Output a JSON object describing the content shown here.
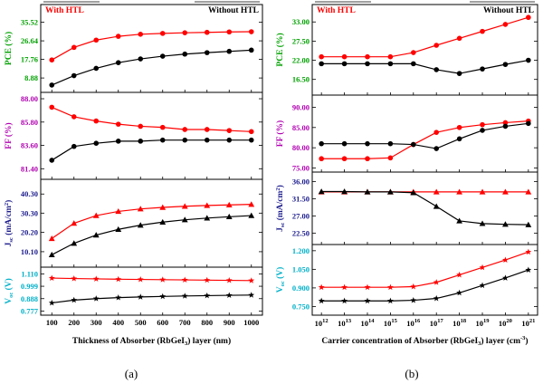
{
  "colors": {
    "with_htl": "#ff0000",
    "without_htl": "#000000",
    "pce": "#00a000",
    "ff": "#b000b0",
    "jsc": "#1a1a8c",
    "voc": "#00b0c8"
  },
  "chart_data": [
    {
      "id": "a",
      "type": "line",
      "caption": "(a)",
      "xlabel": "Thickness of Absorber (RbGeI3) layer (nm)",
      "x": [
        100,
        200,
        300,
        400,
        500,
        600,
        700,
        800,
        900,
        1000
      ],
      "xticks": [
        "100",
        "200",
        "300",
        "400",
        "500",
        "600",
        "700",
        "800",
        "900",
        "1000"
      ],
      "xlim": [
        50,
        1050
      ],
      "legend": [
        "With HTL",
        "Without HTL"
      ],
      "panels": [
        {
          "key": "pce",
          "ylabel": "PCE (%)",
          "ylim": [
            2,
            44
          ],
          "yticks": [
            "8.88",
            "17.76",
            "26.64",
            "35.52"
          ],
          "ytick_values": [
            8.88,
            17.76,
            26.64,
            35.52
          ],
          "marker": "circle",
          "series": [
            {
              "name": "With HTL",
              "values": [
                17.5,
                23.5,
                27.0,
                28.8,
                29.8,
                30.2,
                30.5,
                30.7,
                30.9,
                31.0
              ]
            },
            {
              "name": "Without HTL",
              "values": [
                5.5,
                10.0,
                13.5,
                16.2,
                18.0,
                19.3,
                20.3,
                21.0,
                21.6,
                22.2
              ]
            }
          ]
        },
        {
          "key": "ff",
          "ylabel": "FF (%)",
          "ylim": [
            80.4,
            88.6
          ],
          "yticks": [
            "81.40",
            "83.60",
            "85.80",
            "88.00"
          ],
          "ytick_values": [
            81.4,
            83.6,
            85.8,
            88.0
          ],
          "marker": "circle",
          "series": [
            {
              "name": "With HTL",
              "values": [
                87.2,
                86.3,
                85.9,
                85.6,
                85.4,
                85.3,
                85.1,
                85.1,
                85.0,
                84.9
              ]
            },
            {
              "name": "Without HTL",
              "values": [
                82.2,
                83.5,
                83.8,
                84.0,
                84.0,
                84.1,
                84.1,
                84.1,
                84.1,
                84.1
              ]
            }
          ]
        },
        {
          "key": "jsc",
          "ylabel": "Jsc (mA/cm2)",
          "ylim": [
            2,
            48
          ],
          "yticks": [
            "10.10",
            "20.20",
            "30.30",
            "40.30"
          ],
          "ytick_values": [
            10.1,
            20.2,
            30.3,
            40.3
          ],
          "marker": "triangle",
          "series": [
            {
              "name": "With HTL",
              "values": [
                17.0,
                25.0,
                29.0,
                31.2,
                32.5,
                33.3,
                33.9,
                34.3,
                34.6,
                34.9
              ]
            },
            {
              "name": "Without HTL",
              "values": [
                8.5,
                14.5,
                18.8,
                21.8,
                24.0,
                25.6,
                26.8,
                27.7,
                28.4,
                29.0
              ]
            }
          ]
        },
        {
          "key": "voc",
          "ylabel": "Voc (V)",
          "ylim": [
            0.74,
            1.17
          ],
          "yticks": [
            "0.777",
            "0.888",
            "0.999",
            "1.110"
          ],
          "ytick_values": [
            0.777,
            0.888,
            0.999,
            1.11
          ],
          "marker": "star",
          "series": [
            {
              "name": "With HTL",
              "values": [
                1.072,
                1.068,
                1.065,
                1.062,
                1.06,
                1.058,
                1.056,
                1.054,
                1.052,
                1.05
              ]
            },
            {
              "name": "Without HTL",
              "values": [
                0.85,
                0.875,
                0.888,
                0.897,
                0.903,
                0.908,
                0.912,
                0.915,
                0.918,
                0.92
              ]
            }
          ]
        }
      ]
    },
    {
      "id": "b",
      "type": "line",
      "caption": "(b)",
      "xlabel": "Carrier concentration of Absorber (RbGeI3) layer (cm-3)",
      "x": [
        12,
        13,
        14,
        15,
        16,
        17,
        18,
        19,
        20,
        21
      ],
      "xticks": [
        "10^12",
        "10^13",
        "10^14",
        "10^15",
        "10^16",
        "10^17",
        "10^18",
        "10^19",
        "10^20",
        "10^21"
      ],
      "xlim": [
        11.6,
        21.4
      ],
      "legend": [
        "With HTL",
        "Without HTL"
      ],
      "panels": [
        {
          "key": "pce",
          "ylabel": "PCE (%)",
          "ylim": [
            12,
            38
          ],
          "yticks": [
            "16.50",
            "22.00",
            "27.50",
            "33.00"
          ],
          "ytick_values": [
            16.5,
            22.0,
            27.5,
            33.0
          ],
          "marker": "circle",
          "series": [
            {
              "name": "With HTL",
              "values": [
                23.0,
                23.0,
                23.0,
                23.0,
                24.2,
                26.3,
                28.3,
                30.3,
                32.3,
                34.3
              ]
            },
            {
              "name": "Without HTL",
              "values": [
                21.0,
                21.0,
                21.0,
                21.0,
                21.0,
                19.3,
                18.2,
                19.5,
                20.8,
                22.0
              ]
            }
          ]
        },
        {
          "key": "ff",
          "ylabel": "FF (%)",
          "ylim": [
            74,
            93
          ],
          "yticks": [
            "75.00",
            "80.00",
            "85.00",
            "90.00"
          ],
          "ytick_values": [
            75,
            80,
            85,
            90
          ],
          "marker": "circle",
          "series": [
            {
              "name": "With HTL",
              "values": [
                77.3,
                77.3,
                77.3,
                77.5,
                80.8,
                83.8,
                85.0,
                85.7,
                86.2,
                86.6
              ]
            },
            {
              "name": "Without HTL",
              "values": [
                81.0,
                81.0,
                81.0,
                81.0,
                80.8,
                79.8,
                82.2,
                84.3,
                85.3,
                86.0
              ]
            }
          ]
        },
        {
          "key": "jsc",
          "ylabel": "Jsc (mA/cm2)",
          "ylim": [
            19.5,
            38.5
          ],
          "yticks": [
            "22.50",
            "27.00",
            "31.50",
            "36.00"
          ],
          "ytick_values": [
            22.5,
            27.0,
            31.5,
            36.0
          ],
          "marker": "triangle",
          "series": [
            {
              "name": "With HTL",
              "values": [
                33.3,
                33.3,
                33.3,
                33.3,
                33.3,
                33.3,
                33.3,
                33.3,
                33.3,
                33.3
              ]
            },
            {
              "name": "Without HTL",
              "values": [
                33.4,
                33.4,
                33.3,
                33.3,
                33.1,
                29.5,
                25.7,
                25.0,
                24.8,
                24.7
              ]
            }
          ]
        },
        {
          "key": "voc",
          "ylabel": "Voc (V)",
          "ylim": [
            0.68,
            1.25
          ],
          "yticks": [
            "0.750",
            "0.900",
            "1.050",
            "1.200"
          ],
          "ytick_values": [
            0.75,
            0.9,
            1.05,
            1.2
          ],
          "marker": "star",
          "series": [
            {
              "name": "With HTL",
              "values": [
                0.905,
                0.905,
                0.905,
                0.905,
                0.91,
                0.945,
                1.005,
                1.065,
                1.125,
                1.19
              ]
            },
            {
              "name": "Without HTL",
              "values": [
                0.795,
                0.795,
                0.795,
                0.795,
                0.8,
                0.815,
                0.86,
                0.92,
                0.98,
                1.045
              ]
            }
          ]
        }
      ]
    }
  ]
}
